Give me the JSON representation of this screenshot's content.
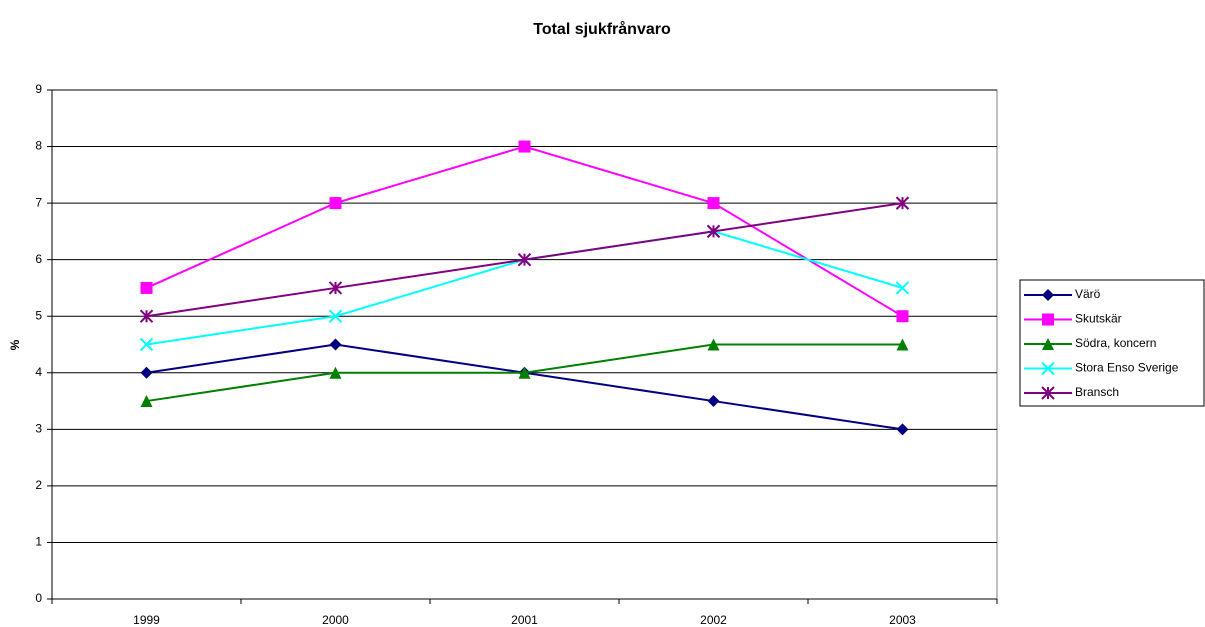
{
  "chart_data": {
    "type": "line",
    "title": "Total sjukfrånvaro",
    "y_label": "%",
    "categories": [
      "1999",
      "2000",
      "2001",
      "2002",
      "2003"
    ],
    "series": [
      {
        "name": "Värö",
        "color": "#000080",
        "marker": "diamond",
        "values": [
          4,
          4.5,
          4,
          3.5,
          3
        ]
      },
      {
        "name": "Skutskär",
        "color": "#ff00ff",
        "marker": "square",
        "values": [
          5.5,
          7,
          8,
          7,
          5
        ]
      },
      {
        "name": "Södra, koncern",
        "color": "#008000",
        "marker": "triangle",
        "values": [
          3.5,
          4,
          4,
          4.5,
          4.5
        ]
      },
      {
        "name": "Stora Enso Sverige",
        "color": "#00ffff",
        "marker": "x",
        "values": [
          4.5,
          5,
          6,
          6.5,
          5.5
        ]
      },
      {
        "name": "Bransch",
        "color": "#800080",
        "marker": "star",
        "values": [
          5,
          5.5,
          6,
          6.5,
          7
        ]
      }
    ],
    "ylim": [
      0,
      9
    ],
    "yticks": [
      0,
      1,
      2,
      3,
      4,
      5,
      6,
      7,
      8,
      9
    ],
    "grid": true,
    "legend": "right"
  }
}
